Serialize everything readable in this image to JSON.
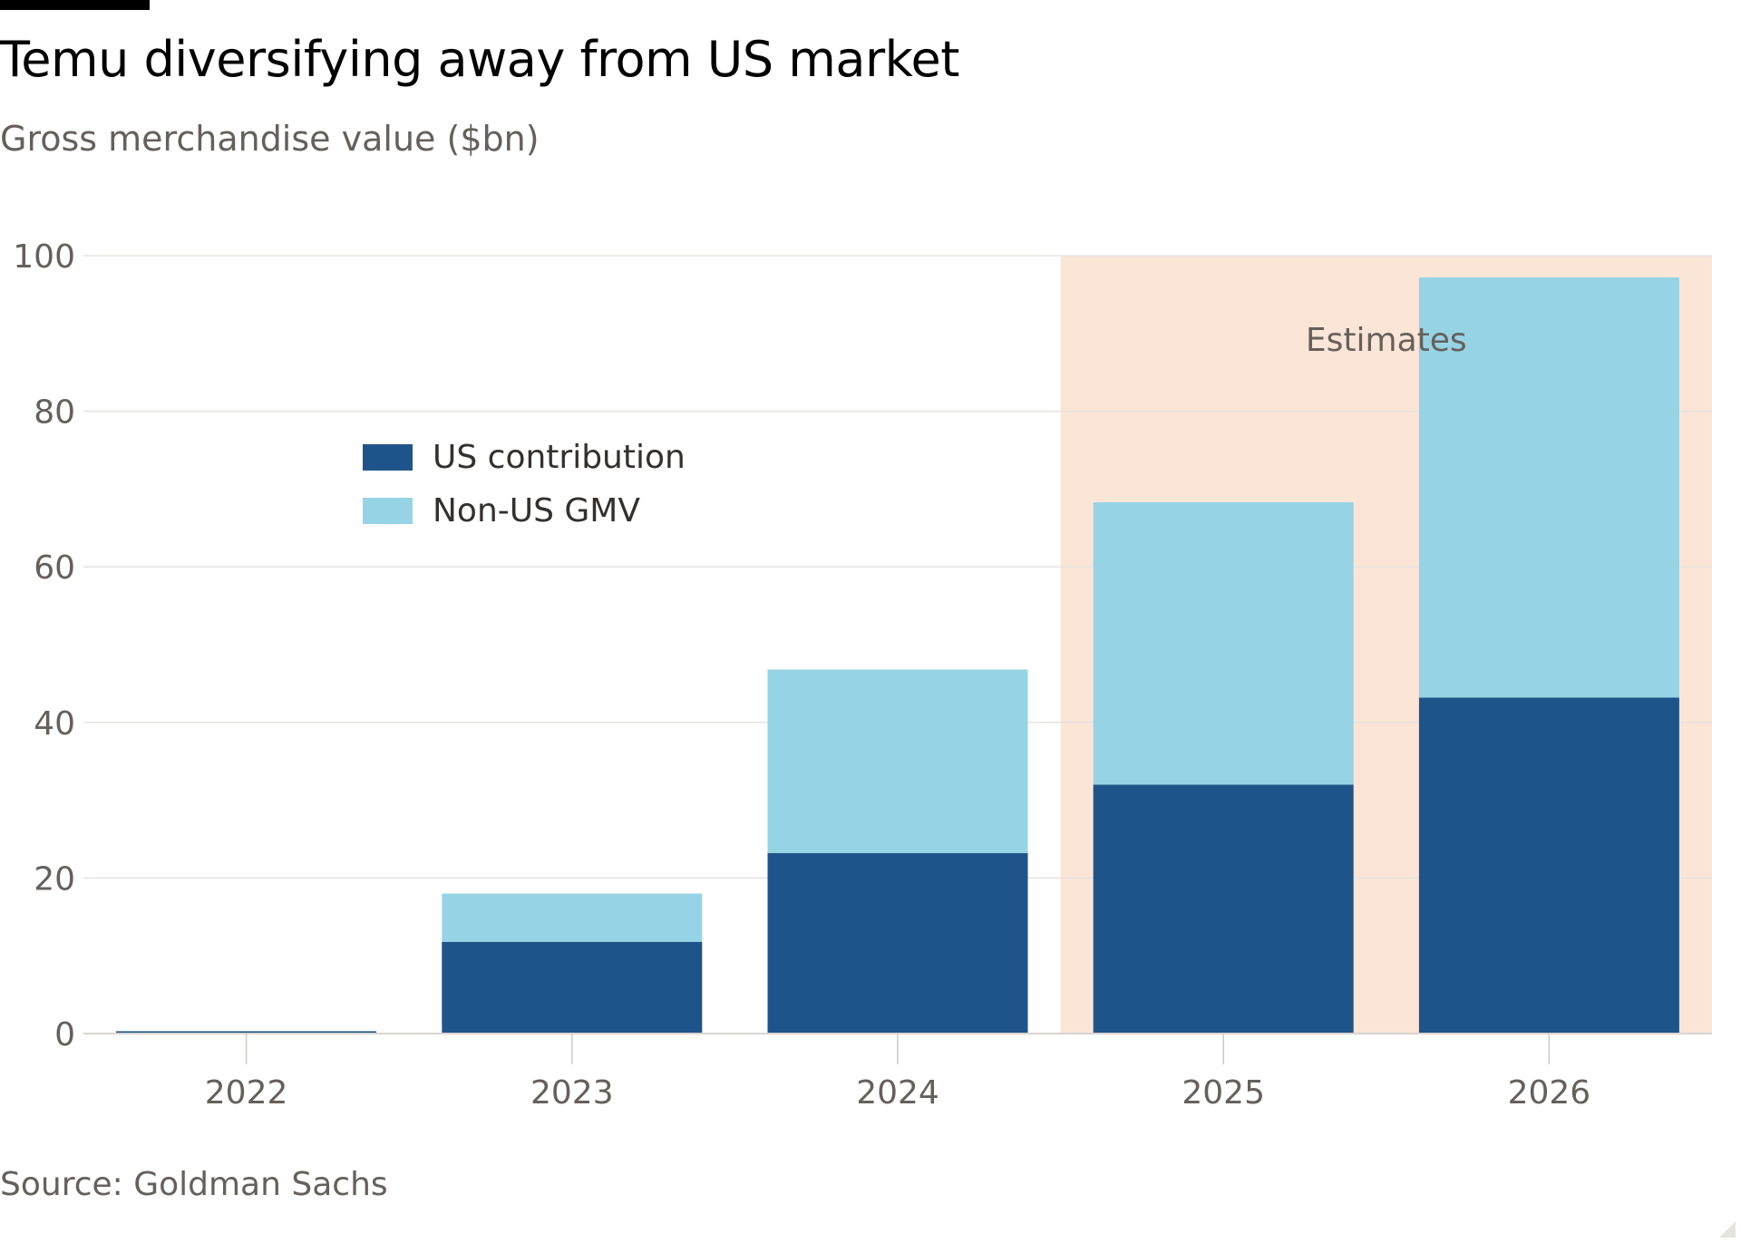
{
  "title": "Temu diversifying away from US market",
  "subtitle": "Gross merchandise value ($bn)",
  "source": "Source: Goldman Sachs",
  "colors": {
    "us": "#1f548a",
    "non_us": "#96d3e5",
    "estimate_band": "#fbe5d6",
    "grid": "#e6e3e0",
    "tick_text": "#66605c"
  },
  "chart_data": {
    "type": "bar",
    "stacked": true,
    "categories": [
      "2022",
      "2023",
      "2024",
      "2025",
      "2026"
    ],
    "series": [
      {
        "name": "US contribution",
        "values": [
          0.3,
          11.8,
          23.2,
          32.0,
          43.2
        ]
      },
      {
        "name": "Non-US GMV",
        "values": [
          0.0,
          6.2,
          23.6,
          36.3,
          54.0
        ]
      }
    ],
    "ylim": [
      0,
      100
    ],
    "yticks": [
      0,
      20,
      40,
      60,
      80,
      100
    ],
    "grid": true,
    "legend": "upper-left",
    "annotation": {
      "label": "Estimates",
      "categories": [
        "2025",
        "2026"
      ]
    }
  }
}
